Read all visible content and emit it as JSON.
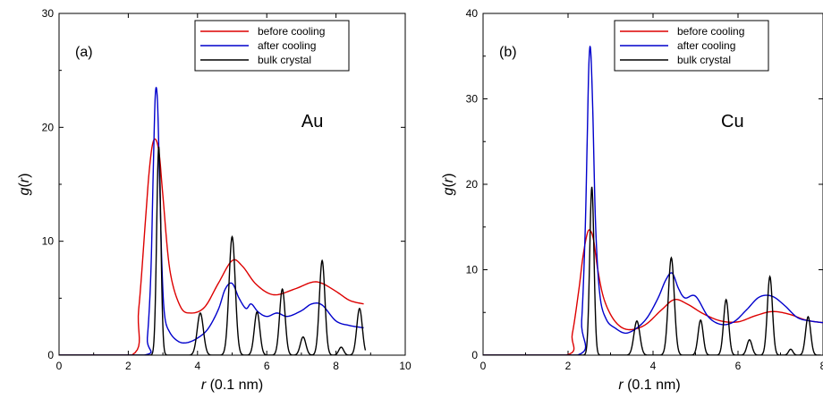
{
  "chart_data": [
    {
      "type": "line",
      "panel_label": "(a)",
      "annotation": "Au",
      "xlabel": "r (0.1 nm)",
      "ylabel": "g(r)",
      "xlim": [
        0,
        10
      ],
      "ylim": [
        0,
        30
      ],
      "xticks": [
        0,
        2,
        4,
        6,
        8,
        10
      ],
      "yticks": [
        0,
        10,
        20,
        30
      ],
      "legend_position": "top-right",
      "grid": false,
      "series": [
        {
          "name": "before cooling",
          "color": "#dd0000",
          "x": [
            0,
            2.1,
            2.3,
            2.5,
            2.6,
            2.7,
            2.8,
            2.9,
            3.0,
            3.2,
            3.5,
            3.8,
            4.2,
            4.6,
            5.0,
            5.3,
            5.7,
            6.2,
            6.8,
            7.3,
            7.6,
            8.0,
            8.4,
            8.8
          ],
          "y": [
            0,
            0,
            4,
            12,
            16,
            18.5,
            18.9,
            17.5,
            14,
            7.5,
            4.3,
            3.7,
            4.2,
            6.3,
            8.3,
            7.8,
            6.2,
            5.3,
            5.8,
            6.4,
            6.3,
            5.6,
            4.8,
            4.5
          ]
        },
        {
          "name": "after cooling",
          "color": "#0000cc",
          "x": [
            0,
            2.45,
            2.55,
            2.65,
            2.72,
            2.78,
            2.84,
            2.9,
            2.97,
            3.05,
            3.2,
            3.45,
            3.7,
            4.0,
            4.3,
            4.6,
            4.8,
            5.0,
            5.2,
            5.4,
            5.55,
            5.75,
            6.0,
            6.3,
            6.6,
            7.0,
            7.3,
            7.6,
            8.0,
            8.4,
            8.8
          ],
          "y": [
            0,
            0,
            1.5,
            7,
            16,
            22.8,
            22.5,
            16,
            8,
            3.5,
            2.0,
            1.2,
            1.1,
            1.5,
            2.3,
            4.0,
            5.8,
            6.3,
            5.0,
            4.1,
            4.5,
            3.8,
            3.4,
            3.7,
            3.4,
            3.9,
            4.5,
            4.4,
            3.0,
            2.6,
            2.4
          ]
        },
        {
          "name": "bulk crystal",
          "color": "#000000",
          "peaks": [
            {
              "center": 2.88,
              "height": 18.3,
              "width": 0.06
            },
            {
              "center": 4.08,
              "height": 3.7,
              "width": 0.09
            },
            {
              "center": 5.0,
              "height": 10.4,
              "width": 0.09
            },
            {
              "center": 5.72,
              "height": 3.8,
              "width": 0.08
            },
            {
              "center": 6.45,
              "height": 5.8,
              "width": 0.08
            },
            {
              "center": 7.05,
              "height": 1.6,
              "width": 0.08
            },
            {
              "center": 7.6,
              "height": 8.3,
              "width": 0.08
            },
            {
              "center": 8.15,
              "height": 0.7,
              "width": 0.07
            },
            {
              "center": 8.68,
              "height": 4.1,
              "width": 0.08
            }
          ],
          "x_end": 8.85
        }
      ]
    },
    {
      "type": "line",
      "panel_label": "(b)",
      "annotation": "Cu",
      "xlabel": "r (0.1 nm)",
      "ylabel": "g(r)",
      "xlim": [
        0,
        8
      ],
      "ylim": [
        0,
        40
      ],
      "xticks": [
        0,
        2,
        4,
        6,
        8
      ],
      "yticks": [
        0,
        10,
        20,
        30,
        40
      ],
      "legend_position": "top-right",
      "grid": false,
      "series": [
        {
          "name": "before cooling",
          "color": "#dd0000",
          "x": [
            0,
            1.95,
            2.1,
            2.25,
            2.35,
            2.45,
            2.52,
            2.6,
            2.7,
            2.85,
            3.1,
            3.4,
            3.8,
            4.2,
            4.5,
            4.8,
            5.2,
            5.6,
            6.0,
            6.4,
            6.8,
            7.2,
            7.6,
            8.0
          ],
          "y": [
            0,
            0,
            2.5,
            7.5,
            11.5,
            14.2,
            14.6,
            13.5,
            10,
            6.5,
            4.0,
            3.0,
            3.5,
            5.3,
            6.5,
            6.0,
            4.8,
            4.0,
            3.9,
            4.6,
            5.1,
            4.8,
            4.1,
            3.8
          ]
        },
        {
          "name": "after cooling",
          "color": "#0000cc",
          "x": [
            0,
            2.22,
            2.32,
            2.4,
            2.45,
            2.49,
            2.53,
            2.58,
            2.65,
            2.75,
            2.9,
            3.1,
            3.4,
            3.8,
            4.1,
            4.3,
            4.45,
            4.6,
            4.75,
            5.0,
            5.3,
            5.6,
            5.9,
            6.2,
            6.5,
            6.8,
            7.1,
            7.4,
            7.7,
            8.0
          ],
          "y": [
            0,
            0,
            4,
            14,
            25,
            34,
            35.8,
            29,
            15,
            7,
            4.2,
            3.2,
            2.6,
            4.0,
            6.5,
            8.8,
            9.6,
            7.8,
            6.7,
            6.9,
            4.5,
            3.6,
            3.9,
            5.3,
            6.8,
            6.9,
            5.8,
            4.4,
            4.0,
            3.8
          ]
        },
        {
          "name": "bulk crystal",
          "color": "#000000",
          "peaks": [
            {
              "center": 2.56,
              "height": 19.7,
              "width": 0.05
            },
            {
              "center": 3.62,
              "height": 4.0,
              "width": 0.07
            },
            {
              "center": 4.43,
              "height": 11.4,
              "width": 0.07
            },
            {
              "center": 5.12,
              "height": 4.1,
              "width": 0.06
            },
            {
              "center": 5.72,
              "height": 6.5,
              "width": 0.06
            },
            {
              "center": 6.27,
              "height": 1.8,
              "width": 0.06
            },
            {
              "center": 6.75,
              "height": 9.2,
              "width": 0.06
            },
            {
              "center": 7.24,
              "height": 0.7,
              "width": 0.05
            },
            {
              "center": 7.65,
              "height": 4.5,
              "width": 0.06
            }
          ],
          "x_end": 7.95
        }
      ]
    }
  ]
}
